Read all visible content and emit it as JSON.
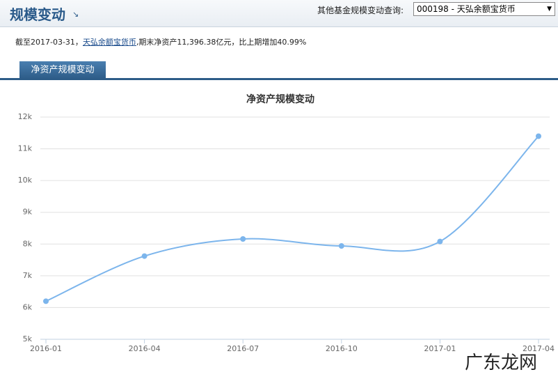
{
  "header": {
    "title": "规模变动",
    "query_label": "其他基金规模变动查询:",
    "select_value": "000198 - 天弘余额宝货币"
  },
  "info": {
    "prefix": "截至2017-03-31，",
    "link": "天弘余额宝货币",
    "suffix": ",期末净资产11,396.38亿元，比上期增加40.99%"
  },
  "tab": {
    "label": "净资产规模变动"
  },
  "chart_data": {
    "type": "line",
    "title": "净资产规模变动",
    "categories": [
      "2016-01",
      "2016-04",
      "2016-07",
      "2016-10",
      "2017-01",
      "2017-04"
    ],
    "series": [
      {
        "name": "净资产",
        "color": "#7cb5ec",
        "values": [
          6200,
          7620,
          8160,
          7940,
          8080,
          11396.38
        ]
      }
    ],
    "ylim": [
      5000,
      12000
    ],
    "yticks": [
      {
        "value": 5000,
        "label": "5k"
      },
      {
        "value": 6000,
        "label": "6k"
      },
      {
        "value": 7000,
        "label": "7k"
      },
      {
        "value": 8000,
        "label": "8k"
      },
      {
        "value": 9000,
        "label": "9k"
      },
      {
        "value": 10000,
        "label": "10k"
      },
      {
        "value": 11000,
        "label": "11k"
      },
      {
        "value": 12000,
        "label": "12k"
      }
    ],
    "grid": true,
    "smooth": true
  },
  "watermark": "广东龙网"
}
